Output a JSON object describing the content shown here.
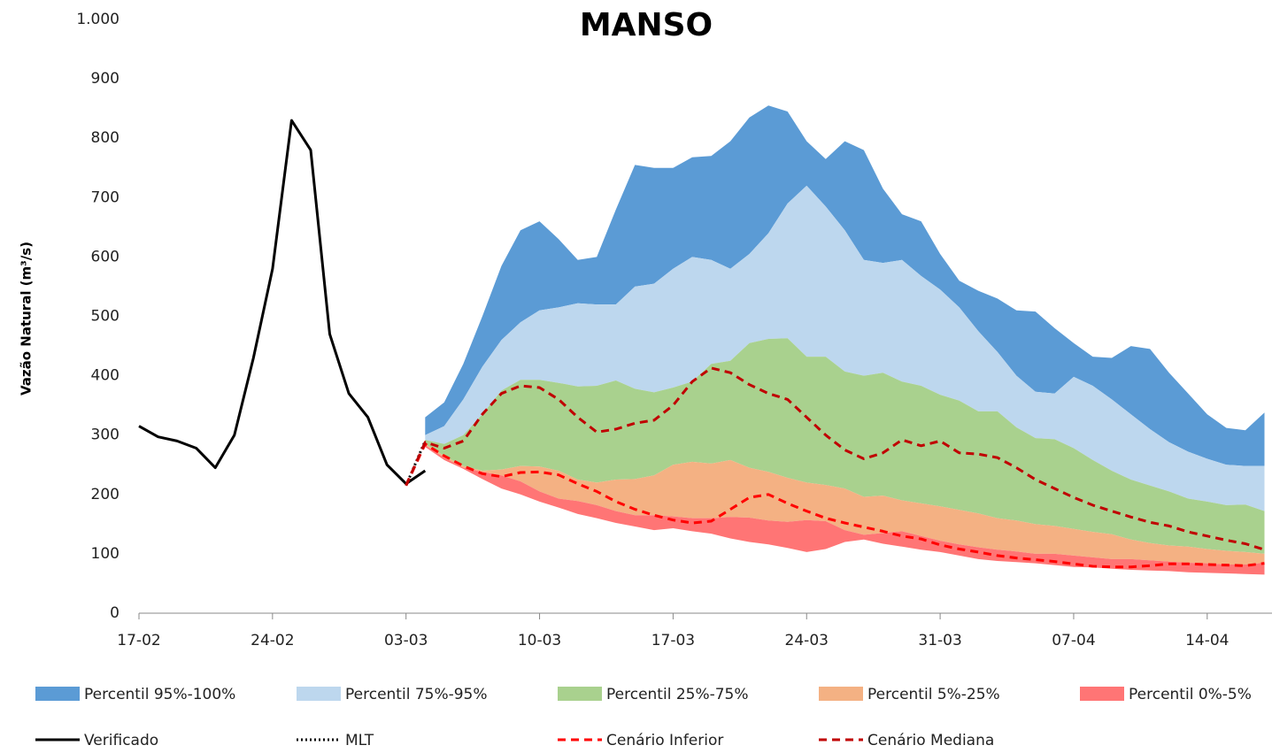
{
  "chart_data": {
    "type": "area",
    "title": "MANSO",
    "y_label": "Vazão Natural (m³/s)",
    "categories": [
      "17-02",
      null,
      null,
      null,
      null,
      null,
      null,
      "24-02",
      null,
      null,
      null,
      null,
      null,
      null,
      "03-03",
      null,
      null,
      null,
      null,
      null,
      null,
      "10-03",
      null,
      null,
      null,
      null,
      null,
      null,
      "17-03",
      null,
      null,
      null,
      null,
      null,
      null,
      "24-03",
      null,
      null,
      null,
      null,
      null,
      null,
      "31-03",
      null,
      null,
      null,
      null,
      null,
      null,
      "07-04",
      null,
      null,
      null,
      null,
      null,
      null,
      "14-04",
      null,
      null,
      null
    ],
    "ylim": [
      0,
      1000
    ],
    "yticks": [
      0,
      100,
      200,
      300,
      400,
      500,
      600,
      700,
      800,
      {
        "value": 900,
        "label": "900"
      },
      {
        "value": 1000,
        "label": "1.000"
      }
    ],
    "bands": [
      {
        "name": "Percentil 95%-100%",
        "color": "#5b9bd5",
        "lower": [
          null,
          null,
          null,
          null,
          null,
          null,
          null,
          null,
          null,
          null,
          null,
          null,
          null,
          null,
          null,
          300,
          315,
          360,
          415,
          460,
          490,
          510,
          515,
          522,
          520,
          520,
          550,
          555,
          580,
          600,
          595,
          580,
          605,
          640,
          690,
          720,
          685,
          645,
          595,
          590,
          595,
          568,
          545,
          515,
          475,
          440,
          400,
          373,
          370,
          398,
          383,
          360,
          335,
          310,
          288,
          272,
          260,
          250,
          248,
          248
        ],
        "upper": [
          null,
          null,
          null,
          null,
          null,
          null,
          null,
          null,
          null,
          null,
          null,
          null,
          null,
          null,
          null,
          330,
          355,
          420,
          500,
          585,
          645,
          660,
          630,
          595,
          600,
          680,
          755,
          750,
          750,
          768,
          770,
          795,
          835,
          855,
          845,
          795,
          765,
          795,
          780,
          715,
          672,
          660,
          605,
          560,
          543,
          530,
          510,
          508,
          480,
          455,
          432,
          430,
          450,
          445,
          405,
          370,
          335,
          312,
          308,
          338
        ]
      },
      {
        "name": "Percentil 75%-95%",
        "color": "#bdd7ee",
        "lower": [
          null,
          null,
          null,
          null,
          null,
          null,
          null,
          null,
          null,
          null,
          null,
          null,
          null,
          null,
          null,
          292,
          285,
          300,
          335,
          375,
          393,
          393,
          388,
          382,
          383,
          392,
          378,
          372,
          380,
          390,
          420,
          425,
          455,
          462,
          463,
          432,
          432,
          407,
          400,
          405,
          390,
          383,
          368,
          358,
          340,
          340,
          313,
          295,
          293,
          278,
          258,
          240,
          225,
          215,
          205,
          193,
          188,
          182,
          183,
          172
        ],
        "upper": [
          null,
          null,
          null,
          null,
          null,
          null,
          null,
          null,
          null,
          null,
          null,
          null,
          null,
          null,
          null,
          300,
          315,
          360,
          415,
          460,
          490,
          510,
          515,
          522,
          520,
          520,
          550,
          555,
          580,
          600,
          595,
          580,
          605,
          640,
          690,
          720,
          685,
          645,
          595,
          590,
          595,
          568,
          545,
          515,
          475,
          440,
          400,
          373,
          370,
          398,
          383,
          360,
          335,
          310,
          288,
          272,
          260,
          250,
          248,
          248
        ]
      },
      {
        "name": "Percentil 25%-75%",
        "color": "#a9d18e",
        "lower": [
          null,
          null,
          null,
          null,
          null,
          null,
          null,
          null,
          null,
          null,
          null,
          null,
          null,
          null,
          null,
          285,
          265,
          248,
          240,
          242,
          248,
          247,
          240,
          225,
          220,
          225,
          226,
          232,
          250,
          255,
          252,
          258,
          245,
          238,
          228,
          220,
          216,
          210,
          196,
          198,
          190,
          185,
          180,
          174,
          168,
          160,
          156,
          150,
          147,
          142,
          137,
          133,
          124,
          118,
          114,
          112,
          108,
          105,
          103,
          100
        ],
        "upper": [
          null,
          null,
          null,
          null,
          null,
          null,
          null,
          null,
          null,
          null,
          null,
          null,
          null,
          null,
          null,
          292,
          285,
          300,
          335,
          375,
          393,
          393,
          388,
          382,
          383,
          392,
          378,
          372,
          380,
          390,
          420,
          425,
          455,
          462,
          463,
          432,
          432,
          407,
          400,
          405,
          390,
          383,
          368,
          358,
          340,
          340,
          313,
          295,
          293,
          278,
          258,
          240,
          225,
          215,
          205,
          193,
          188,
          182,
          183,
          172
        ]
      },
      {
        "name": "Percentil 5%-25%",
        "color": "#f4b183",
        "lower": [
          null,
          null,
          null,
          null,
          null,
          null,
          null,
          null,
          null,
          null,
          null,
          null,
          null,
          null,
          null,
          283,
          262,
          245,
          238,
          232,
          222,
          205,
          193,
          189,
          182,
          172,
          165,
          165,
          163,
          160,
          160,
          162,
          161,
          156,
          154,
          157,
          155,
          140,
          132,
          135,
          138,
          130,
          122,
          116,
          111,
          107,
          104,
          100,
          100,
          97,
          94,
          91,
          91,
          89,
          87,
          85,
          84,
          82,
          82,
          85
        ],
        "upper": [
          null,
          null,
          null,
          null,
          null,
          null,
          null,
          null,
          null,
          null,
          null,
          null,
          null,
          null,
          null,
          285,
          265,
          248,
          240,
          242,
          248,
          247,
          240,
          225,
          220,
          225,
          226,
          232,
          250,
          255,
          252,
          258,
          245,
          238,
          228,
          220,
          216,
          210,
          196,
          198,
          190,
          185,
          180,
          174,
          168,
          160,
          156,
          150,
          147,
          142,
          137,
          133,
          124,
          118,
          114,
          112,
          108,
          105,
          103,
          100
        ]
      },
      {
        "name": "Percentil 0%-5%",
        "color": "#ff7575",
        "lower": [
          null,
          null,
          null,
          null,
          null,
          null,
          null,
          null,
          null,
          null,
          null,
          null,
          null,
          null,
          null,
          280,
          258,
          243,
          226,
          210,
          200,
          188,
          178,
          167,
          160,
          152,
          146,
          140,
          143,
          138,
          134,
          126,
          120,
          116,
          110,
          103,
          108,
          120,
          124,
          117,
          112,
          107,
          103,
          97,
          91,
          88,
          86,
          84,
          81,
          78,
          77,
          75,
          73,
          72,
          71,
          69,
          68,
          67,
          66,
          65
        ],
        "upper": [
          null,
          null,
          null,
          null,
          null,
          null,
          null,
          null,
          null,
          null,
          null,
          null,
          null,
          null,
          null,
          283,
          262,
          245,
          238,
          232,
          222,
          205,
          193,
          189,
          182,
          172,
          165,
          165,
          163,
          160,
          160,
          162,
          161,
          156,
          154,
          157,
          155,
          140,
          132,
          135,
          138,
          130,
          122,
          116,
          111,
          107,
          104,
          100,
          100,
          97,
          94,
          91,
          91,
          89,
          87,
          85,
          84,
          82,
          82,
          85
        ]
      }
    ],
    "series": [
      {
        "name": "Verificado",
        "color": "#000000",
        "style": "solid",
        "values": [
          315,
          297,
          290,
          278,
          245,
          300,
          430,
          580,
          830,
          780,
          470,
          370,
          330,
          250,
          218,
          240,
          null,
          null,
          null,
          null,
          null,
          null,
          null,
          null,
          null,
          null,
          null,
          null,
          null,
          null,
          null,
          null,
          null,
          null,
          null,
          null,
          null,
          null,
          null,
          null,
          null,
          null,
          null,
          null,
          null,
          null,
          null,
          null,
          null,
          null,
          null,
          null,
          null,
          null,
          null,
          null,
          null,
          null,
          null,
          null
        ]
      },
      {
        "name": "MLT",
        "color": "#000000",
        "style": "dotted",
        "values": [
          null,
          null,
          null,
          null,
          null,
          null,
          null,
          null,
          null,
          null,
          null,
          null,
          null,
          null,
          215,
          290,
          null,
          null,
          null,
          null,
          null,
          null,
          null,
          null,
          null,
          null,
          null,
          null,
          null,
          null,
          null,
          null,
          null,
          null,
          null,
          null,
          null,
          null,
          null,
          null,
          null,
          null,
          null,
          null,
          null,
          null,
          null,
          null,
          null,
          null,
          null,
          null,
          null,
          null,
          null,
          null,
          null,
          null,
          null,
          null
        ]
      },
      {
        "name": "Cenário Inferior",
        "color": "#ff0000",
        "style": "dashed",
        "values": [
          null,
          null,
          null,
          null,
          null,
          null,
          null,
          null,
          null,
          null,
          null,
          null,
          null,
          null,
          215,
          285,
          265,
          248,
          235,
          230,
          237,
          238,
          233,
          218,
          205,
          188,
          175,
          165,
          157,
          152,
          155,
          175,
          195,
          200,
          185,
          172,
          160,
          152,
          145,
          138,
          130,
          125,
          115,
          108,
          103,
          97,
          93,
          90,
          87,
          83,
          79,
          78,
          78,
          80,
          83,
          83,
          82,
          81,
          80,
          84
        ]
      },
      {
        "name": "Cenário Mediana",
        "color": "#c00000",
        "style": "dashed",
        "values": [
          null,
          null,
          null,
          null,
          null,
          null,
          null,
          null,
          null,
          null,
          null,
          null,
          null,
          null,
          215,
          288,
          278,
          290,
          335,
          370,
          383,
          380,
          360,
          330,
          305,
          310,
          320,
          325,
          350,
          390,
          413,
          405,
          385,
          370,
          360,
          330,
          300,
          275,
          260,
          270,
          292,
          282,
          290,
          270,
          268,
          262,
          245,
          225,
          210,
          195,
          182,
          172,
          162,
          153,
          147,
          137,
          130,
          123,
          117,
          107
        ]
      }
    ]
  }
}
